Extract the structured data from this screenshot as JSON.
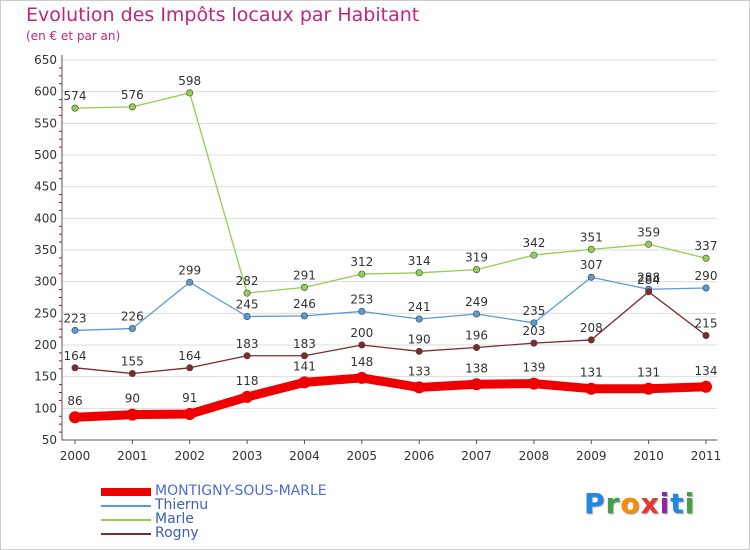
{
  "title": "Evolution des Impôts locaux par Habitant",
  "subtitle": "(en € et par an)",
  "logo_text": "Proxiti",
  "logo_colors": [
    "#1e88e5",
    "#43a047",
    "#fb8c00",
    "#e53935",
    "#8e24aa",
    "#1e88e5",
    "#43a047"
  ],
  "chart_data": {
    "type": "line",
    "title": "Evolution des Impôts locaux par Habitant",
    "subtitle": "(en € et par an)",
    "xlabel": "",
    "ylabel": "",
    "x": [
      "2000",
      "2001",
      "2002",
      "2003",
      "2004",
      "2005",
      "2006",
      "2007",
      "2008",
      "2009",
      "2010",
      "2011"
    ],
    "ylim": [
      50,
      650
    ],
    "yticks": [
      50,
      100,
      150,
      200,
      250,
      300,
      350,
      400,
      450,
      500,
      550,
      600,
      650
    ],
    "grid": "horizontal",
    "legend_position": "bottom-left",
    "series": [
      {
        "name": "MONTIGNY-SOUS-MARLE",
        "color": "#ee0000",
        "values": [
          86,
          90,
          91,
          118,
          141,
          148,
          133,
          138,
          139,
          131,
          131,
          134
        ],
        "labels": [
          "86",
          "90",
          "91",
          "118",
          "141",
          "148",
          "133",
          "138",
          "139",
          "131",
          "131",
          "134"
        ]
      },
      {
        "name": "Thiernu",
        "color": "#5b9bd5",
        "values": [
          223,
          226,
          299,
          245,
          246,
          253,
          241,
          249,
          235,
          307,
          288,
          290
        ],
        "labels": [
          "223",
          "226",
          "299",
          "245",
          "246",
          "253",
          "241",
          "249",
          "235",
          "307",
          "288",
          "290"
        ]
      },
      {
        "name": "Marle",
        "color": "#92d050",
        "values": [
          574,
          576,
          598,
          282,
          291,
          312,
          314,
          319,
          342,
          351,
          359,
          337
        ],
        "labels": [
          "574",
          "576",
          "598",
          "282",
          "291",
          "312",
          "314",
          "319",
          "342",
          "351",
          "359",
          "337"
        ]
      },
      {
        "name": "Rogny",
        "color": "#7b2c2c",
        "values": [
          164,
          155,
          164,
          183,
          183,
          200,
          190,
          196,
          203,
          208,
          284,
          215
        ],
        "labels": [
          "164",
          "155",
          "164",
          "183",
          "183",
          "200",
          "190",
          "196",
          "203",
          "208",
          "284",
          "215"
        ]
      }
    ]
  }
}
